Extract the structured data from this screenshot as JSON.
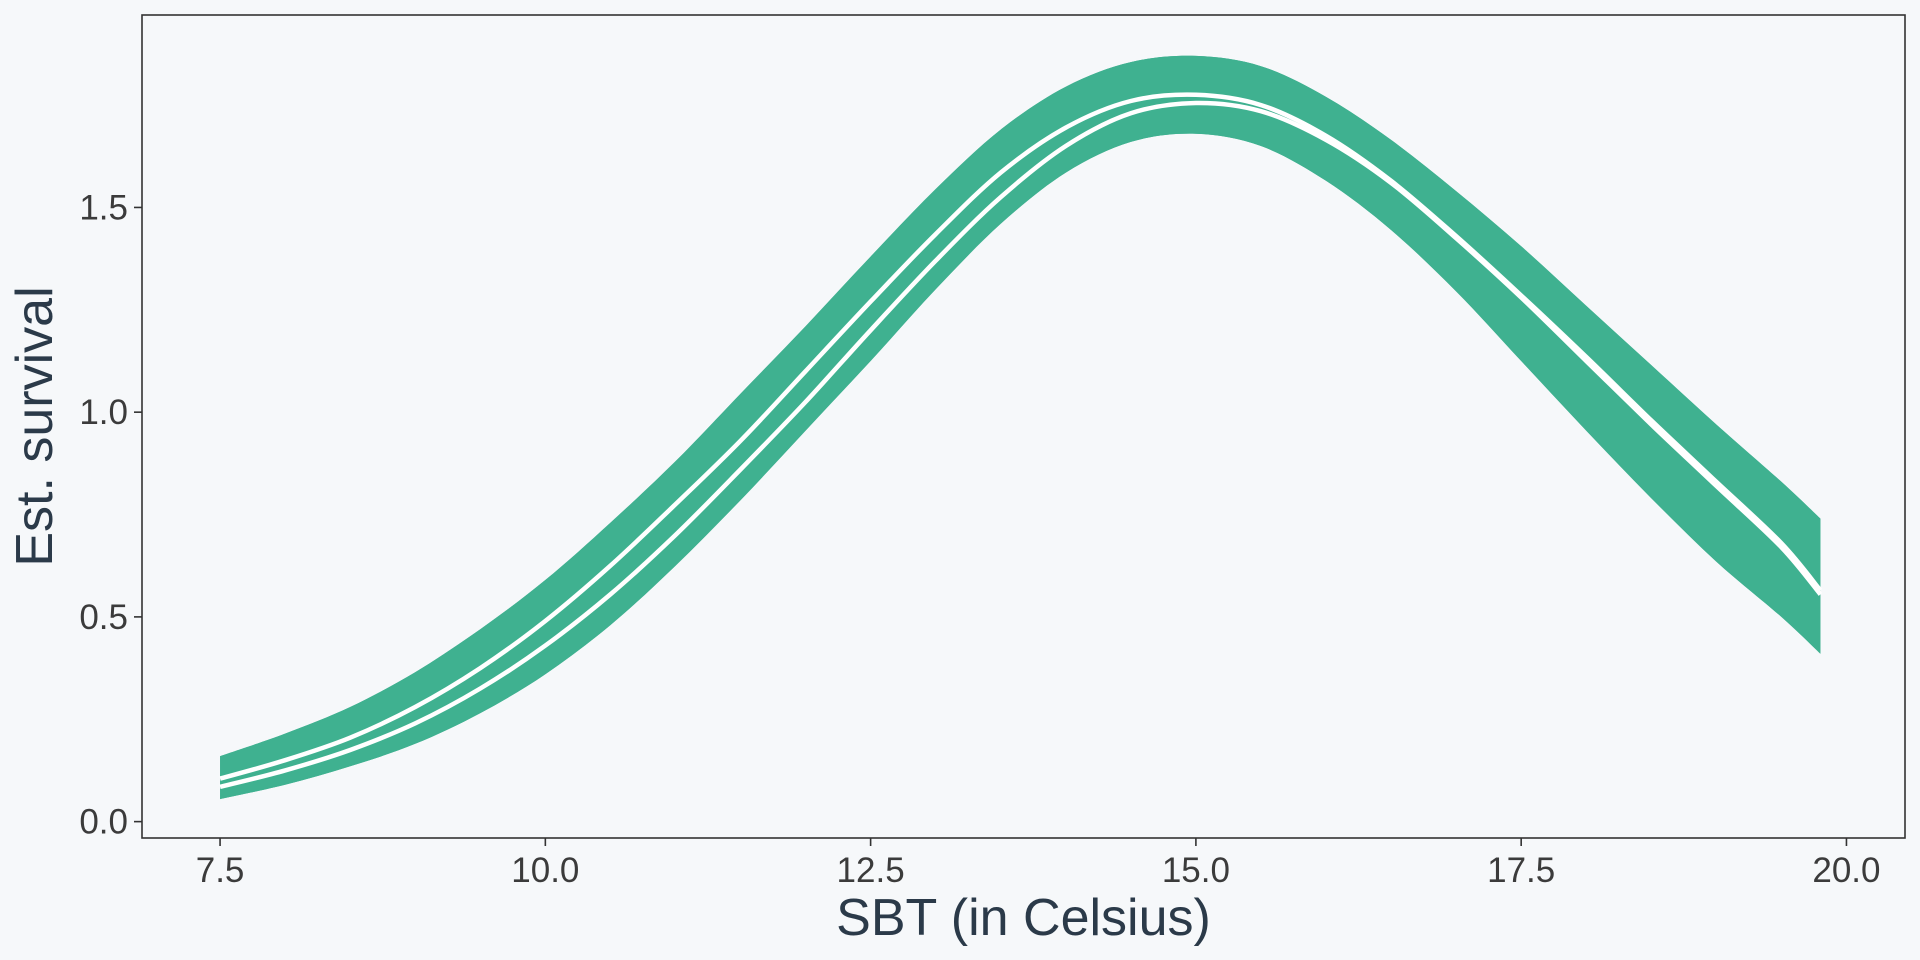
{
  "chart_data": {
    "type": "area",
    "xlabel": "SBT (in Celsius)",
    "ylabel": "Est. survival",
    "xlim": [
      6.9,
      20.45
    ],
    "ylim": [
      -0.04,
      1.97
    ],
    "x_ticks": [
      7.5,
      10.0,
      12.5,
      15.0,
      17.5,
      20.0
    ],
    "x_tick_labels": [
      "7.5",
      "10.0",
      "12.5",
      "15.0",
      "17.5",
      "20.0"
    ],
    "y_ticks": [
      0.0,
      0.5,
      1.0,
      1.5
    ],
    "y_tick_labels": [
      "0.0",
      "0.5",
      "1.0",
      "1.5"
    ],
    "grid": false,
    "legend": "none",
    "colors": {
      "band": "#3fb190",
      "line": "#ffffff",
      "panel_border": "#333333",
      "background": "#f6f8fa"
    },
    "series": [
      {
        "x": [
          7.5,
          8.0,
          8.5,
          9.0,
          9.5,
          10.0,
          10.5,
          11.0,
          11.5,
          12.0,
          12.5,
          13.0,
          13.5,
          14.0,
          14.5,
          15.0,
          15.5,
          16.0,
          16.5,
          17.0,
          17.5,
          18.0,
          18.5,
          19.0,
          19.5,
          19.8
        ],
        "upper": [
          0.16,
          0.215,
          0.28,
          0.365,
          0.47,
          0.59,
          0.73,
          0.88,
          1.045,
          1.21,
          1.38,
          1.545,
          1.69,
          1.795,
          1.855,
          1.87,
          1.845,
          1.77,
          1.665,
          1.54,
          1.405,
          1.26,
          1.115,
          0.97,
          0.83,
          0.74
        ],
        "mean": [
          0.105,
          0.15,
          0.205,
          0.28,
          0.375,
          0.49,
          0.625,
          0.775,
          0.93,
          1.1,
          1.27,
          1.435,
          1.585,
          1.695,
          1.76,
          1.775,
          1.75,
          1.675,
          1.565,
          1.43,
          1.285,
          1.135,
          0.98,
          0.83,
          0.68,
          0.565
        ],
        "lower": [
          0.055,
          0.09,
          0.135,
          0.19,
          0.265,
          0.36,
          0.48,
          0.625,
          0.785,
          0.955,
          1.125,
          1.3,
          1.46,
          1.585,
          1.66,
          1.68,
          1.65,
          1.565,
          1.445,
          1.295,
          1.125,
          0.955,
          0.79,
          0.635,
          0.5,
          0.41
        ]
      },
      {
        "x": [
          7.5,
          8.0,
          8.5,
          9.0,
          9.5,
          10.0,
          10.5,
          11.0,
          11.5,
          12.0,
          12.5,
          13.0,
          13.5,
          14.0,
          14.5,
          15.0,
          15.5,
          16.0,
          16.5,
          17.0,
          17.5,
          18.0,
          18.5,
          19.0,
          19.5,
          19.8
        ],
        "upper": [
          0.16,
          0.215,
          0.28,
          0.365,
          0.47,
          0.59,
          0.73,
          0.88,
          1.045,
          1.21,
          1.38,
          1.545,
          1.69,
          1.795,
          1.855,
          1.87,
          1.845,
          1.77,
          1.665,
          1.54,
          1.405,
          1.26,
          1.115,
          0.97,
          0.83,
          0.74
        ],
        "mean": [
          0.085,
          0.125,
          0.175,
          0.24,
          0.325,
          0.43,
          0.555,
          0.7,
          0.86,
          1.025,
          1.2,
          1.37,
          1.525,
          1.65,
          1.73,
          1.755,
          1.735,
          1.665,
          1.56,
          1.425,
          1.28,
          1.125,
          0.97,
          0.82,
          0.67,
          0.555
        ],
        "lower": [
          0.055,
          0.09,
          0.135,
          0.19,
          0.265,
          0.36,
          0.48,
          0.625,
          0.785,
          0.955,
          1.125,
          1.3,
          1.46,
          1.585,
          1.66,
          1.68,
          1.65,
          1.565,
          1.445,
          1.295,
          1.125,
          0.955,
          0.79,
          0.635,
          0.5,
          0.41
        ]
      }
    ]
  }
}
